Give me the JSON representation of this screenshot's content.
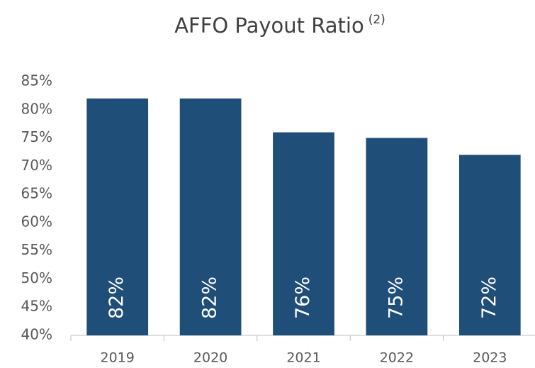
{
  "chart_data": {
    "type": "bar",
    "title": "AFFO Payout Ratio",
    "title_superscript": "(2)",
    "categories": [
      "2019",
      "2020",
      "2021",
      "2022",
      "2023"
    ],
    "values": [
      82,
      82,
      76,
      75,
      72
    ],
    "value_labels": [
      "82%",
      "82%",
      "76%",
      "75%",
      "72%"
    ],
    "color": "#1f4e79",
    "ylim": [
      40,
      85
    ],
    "yticks": [
      {
        "value": 40,
        "label": "40%"
      },
      {
        "value": 45,
        "label": "45%"
      },
      {
        "value": 50,
        "label": "50%"
      },
      {
        "value": 55,
        "label": "55%"
      },
      {
        "value": 60,
        "label": "60%"
      },
      {
        "value": 65,
        "label": "65%"
      },
      {
        "value": 70,
        "label": "70%"
      },
      {
        "value": 75,
        "label": "75%"
      },
      {
        "value": 80,
        "label": "80%"
      },
      {
        "value": 85,
        "label": "85%"
      }
    ],
    "grid": false
  }
}
